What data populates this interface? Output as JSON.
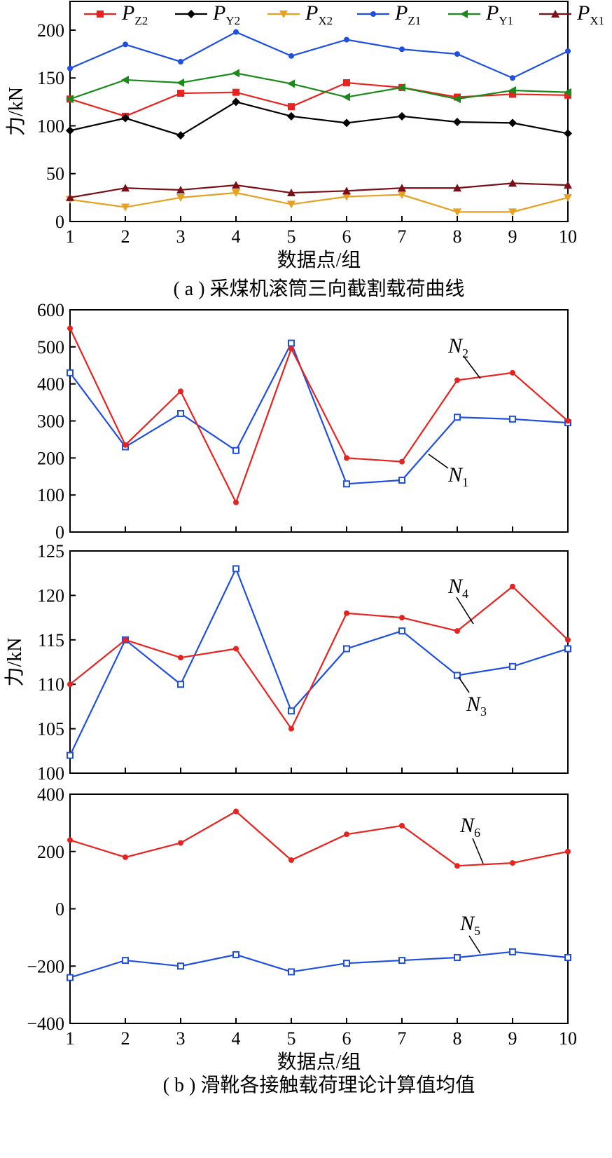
{
  "chart_data": [
    {
      "id": "a",
      "type": "line",
      "caption": "( a ) 采煤机滚筒三向截割载荷曲线",
      "xlabel": "数据点/组",
      "ylabel": "力/kN",
      "xlim": [
        1,
        10
      ],
      "ylim": [
        0,
        230
      ],
      "x_ticks": [
        1,
        2,
        3,
        4,
        5,
        6,
        7,
        8,
        9,
        10
      ],
      "y_ticks": [
        0,
        50,
        100,
        150,
        200
      ],
      "legend": {
        "placement": "top",
        "columns": 6
      },
      "series": [
        {
          "name": "P_Z2",
          "label": "P",
          "sub": "Z2",
          "color": "#e8231f",
          "marker": "square",
          "values": [
            128,
            110,
            134,
            135,
            120,
            145,
            140,
            130,
            133,
            132
          ]
        },
        {
          "name": "P_Y2",
          "label": "P",
          "sub": "Y2",
          "color": "#000000",
          "marker": "diamond",
          "values": [
            95,
            108,
            90,
            125,
            110,
            103,
            110,
            104,
            103,
            92
          ]
        },
        {
          "name": "P_X2",
          "label": "P",
          "sub": "X2",
          "color": "#e8a020",
          "marker": "triangle-down",
          "values": [
            23,
            15,
            25,
            30,
            18,
            26,
            28,
            10,
            10,
            25
          ]
        },
        {
          "name": "P_Z1",
          "label": "P",
          "sub": "Z1",
          "color": "#1f4fe0",
          "marker": "circle",
          "values": [
            160,
            185,
            167,
            198,
            173,
            190,
            180,
            175,
            150,
            178
          ]
        },
        {
          "name": "P_Y1",
          "label": "P",
          "sub": "Y1",
          "color": "#1a8a1a",
          "marker": "triangle-left",
          "values": [
            128,
            148,
            145,
            155,
            144,
            130,
            140,
            128,
            137,
            135
          ]
        },
        {
          "name": "P_X1",
          "label": "P",
          "sub": "X1",
          "color": "#7a0f18",
          "marker": "triangle-up",
          "values": [
            25,
            35,
            33,
            38,
            30,
            32,
            35,
            35,
            40,
            38
          ]
        }
      ]
    },
    {
      "id": "b1",
      "type": "line",
      "xlim": [
        1,
        10
      ],
      "ylim": [
        0,
        600
      ],
      "x_ticks": [
        1,
        2,
        3,
        4,
        5,
        6,
        7,
        8,
        9,
        10
      ],
      "y_ticks": [
        0,
        100,
        200,
        300,
        400,
        500,
        600
      ],
      "series": [
        {
          "name": "N_1",
          "label": "N",
          "sub": "1",
          "color": "#1f4fe0",
          "marker": "square-open",
          "values": [
            430,
            230,
            320,
            220,
            510,
            130,
            140,
            310,
            305,
            295
          ]
        },
        {
          "name": "N_2",
          "label": "N",
          "sub": "2",
          "color": "#e8231f",
          "marker": "circle",
          "values": [
            550,
            235,
            380,
            80,
            495,
            200,
            190,
            410,
            430,
            300
          ]
        }
      ]
    },
    {
      "id": "b2",
      "type": "line",
      "ylabel": "力/kN",
      "xlim": [
        1,
        10
      ],
      "ylim": [
        100,
        125
      ],
      "x_ticks": [
        1,
        2,
        3,
        4,
        5,
        6,
        7,
        8,
        9,
        10
      ],
      "y_ticks": [
        100,
        105,
        110,
        115,
        120,
        125
      ],
      "series": [
        {
          "name": "N_3",
          "label": "N",
          "sub": "3",
          "color": "#1f4fe0",
          "marker": "square-open",
          "values": [
            102,
            115,
            110,
            123,
            107,
            114,
            116,
            111,
            112,
            114
          ]
        },
        {
          "name": "N_4",
          "label": "N",
          "sub": "4",
          "color": "#e8231f",
          "marker": "circle",
          "values": [
            110,
            115,
            113,
            114,
            105,
            118,
            117.5,
            116,
            121,
            115
          ]
        }
      ]
    },
    {
      "id": "b3",
      "type": "line",
      "caption": "( b ) 滑靴各接触载荷理论计算值均值",
      "xlabel": "数据点/组",
      "xlim": [
        1,
        10
      ],
      "ylim": [
        -400,
        400
      ],
      "x_ticks": [
        1,
        2,
        3,
        4,
        5,
        6,
        7,
        8,
        9,
        10
      ],
      "y_ticks": [
        -400,
        -200,
        0,
        200,
        400
      ],
      "series": [
        {
          "name": "N_5",
          "label": "N",
          "sub": "5",
          "color": "#1f4fe0",
          "marker": "square-open",
          "values": [
            -240,
            -180,
            -200,
            -160,
            -220,
            -190,
            -180,
            -170,
            -150,
            -170
          ]
        },
        {
          "name": "N_6",
          "label": "N",
          "sub": "6",
          "color": "#e8231f",
          "marker": "circle",
          "values": [
            240,
            180,
            230,
            340,
            170,
            260,
            290,
            150,
            160,
            200
          ]
        }
      ]
    }
  ]
}
